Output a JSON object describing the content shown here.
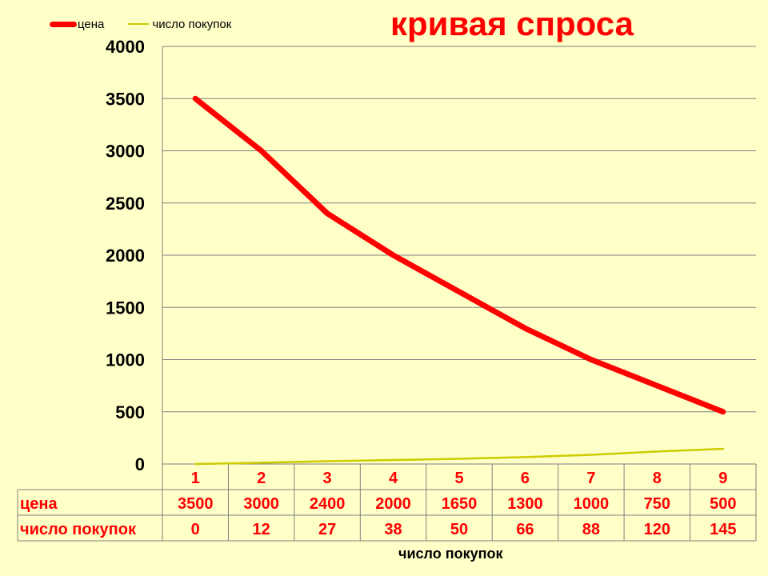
{
  "chart_data": {
    "type": "line",
    "title": "кривая спроса",
    "xlabel": "число покупок",
    "ylabel": "",
    "ylim": [
      0,
      4000
    ],
    "yticks": [
      0,
      500,
      1000,
      1500,
      2000,
      2500,
      3000,
      3500,
      4000
    ],
    "categories": [
      "1",
      "2",
      "3",
      "4",
      "5",
      "6",
      "7",
      "8",
      "9"
    ],
    "series": [
      {
        "name": "цена",
        "values": [
          3500,
          3000,
          2400,
          2000,
          1650,
          1300,
          1000,
          750,
          500
        ],
        "color": "#FF0000"
      },
      {
        "name": "число покупок",
        "values": [
          0,
          12,
          27,
          38,
          50,
          66,
          88,
          120,
          145
        ],
        "color": "#CCCC00"
      }
    ],
    "grid": true,
    "legend_position": "top-left",
    "data_table": true
  },
  "colors": {
    "background": "#FFFFC8",
    "title": "#FF0000",
    "table_text": "#FF0000",
    "gridline": "#808080"
  }
}
